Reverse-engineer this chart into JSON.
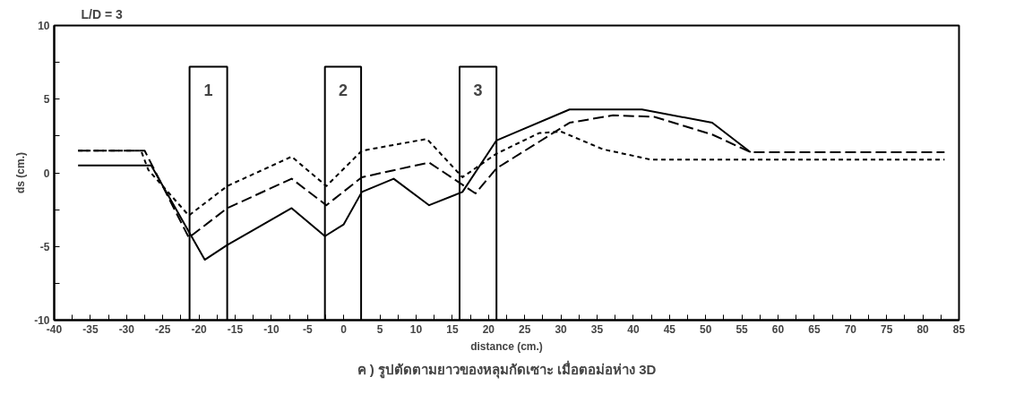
{
  "chart_data": {
    "type": "line",
    "title": "L/D = 3",
    "xlabel": "distance (cm.)",
    "ylabel": "ds (cm.)",
    "annotations": [
      "ค ) รูปตัดตามยาวของหลุมกัดเซาะ เมื่อตอม่อห่าง 3D"
    ],
    "xlim": [
      -40,
      85
    ],
    "ylim": [
      -10,
      10
    ],
    "xticks": [
      -40,
      {
        "value": -37.5,
        "label": null
      },
      -35,
      {
        "value": -32.5,
        "label": null
      },
      -30,
      {
        "value": -27.5,
        "label": null
      },
      -25,
      {
        "value": -22.5,
        "label": null
      },
      -20,
      {
        "value": -17.5,
        "label": null
      },
      -15,
      {
        "value": -12.5,
        "label": null
      },
      -10,
      {
        "value": -7.5,
        "label": null
      },
      -5,
      {
        "value": -2.5,
        "label": null
      },
      0,
      {
        "value": 2.5,
        "label": null
      },
      5,
      {
        "value": 7.5,
        "label": null
      },
      10,
      {
        "value": 12.5,
        "label": null
      },
      15,
      {
        "value": 17.5,
        "label": null
      },
      20,
      {
        "value": 22.5,
        "label": null
      },
      25,
      {
        "value": 27.5,
        "label": null
      },
      30,
      {
        "value": 32.5,
        "label": null
      },
      35,
      {
        "value": 37.5,
        "label": null
      },
      40,
      {
        "value": 42.5,
        "label": null
      },
      45,
      {
        "value": 47.5,
        "label": null
      },
      50,
      {
        "value": 52.5,
        "label": null
      },
      55,
      {
        "value": 57.5,
        "label": null
      },
      60,
      {
        "value": 62.5,
        "label": null
      },
      65,
      {
        "value": 67.5,
        "label": null
      },
      70,
      {
        "value": 72.5,
        "label": null
      },
      75,
      {
        "value": 77.5,
        "label": null
      },
      80,
      {
        "value": 82.5,
        "label": null
      },
      85
    ],
    "yticks": [
      -10,
      {
        "value": -7.5,
        "label": null
      },
      -5,
      {
        "value": -2.5,
        "label": null
      },
      0,
      {
        "value": 2.5,
        "label": null
      },
      5,
      {
        "value": 7.5,
        "label": null
      },
      10
    ],
    "grid": false,
    "marker": "none",
    "bands": [
      {
        "axis": "x",
        "from": -21.3,
        "to": -16.1,
        "label": "1",
        "color": "#ffffff"
      },
      {
        "axis": "x",
        "from": -2.6,
        "to": 2.4,
        "label": "2",
        "color": "#ffffff"
      },
      {
        "axis": "x",
        "from": 16.0,
        "to": 21.1,
        "label": "3",
        "color": "#ffffff"
      }
    ],
    "series": [
      {
        "color": "#000000",
        "line_style": "solid",
        "x": [
          -36.7,
          -26.6,
          -19.2,
          -16.1,
          -7.2,
          -2.6,
          0.0,
          2.5,
          6.9,
          11.8,
          16.4,
          21.1,
          23.5,
          31.2,
          41.2,
          50.9,
          56.2
        ],
        "values": [
          0.5,
          0.5,
          -5.9,
          -4.9,
          -2.4,
          -4.3,
          -3.5,
          -1.3,
          -0.4,
          -2.2,
          -1.3,
          2.2,
          2.7,
          4.3,
          4.3,
          3.4,
          1.4
        ]
      },
      {
        "color": "#000000",
        "line_style": "dashed",
        "x": [
          -36.7,
          -27.5,
          -21.4,
          -16.1,
          -7.2,
          -2.4,
          2.5,
          11.8,
          18.2,
          21.1,
          31.2,
          37.2,
          42.9,
          50.9,
          56.2,
          83.0
        ],
        "values": [
          1.5,
          1.5,
          -4.4,
          -2.4,
          -0.4,
          -2.2,
          -0.3,
          0.7,
          -1.4,
          0.3,
          3.4,
          3.9,
          3.8,
          2.6,
          1.4,
          1.4
        ]
      },
      {
        "color": "#000000",
        "line_style": "dotted",
        "x": [
          -36.7,
          -28.0,
          -27.0,
          -21.4,
          -16.1,
          -7.2,
          -2.4,
          2.5,
          11.5,
          16.4,
          21.1,
          27.0,
          30.0,
          35.8,
          42.4,
          83.0
        ],
        "values": [
          1.5,
          1.5,
          0.2,
          -2.9,
          -0.9,
          1.1,
          -0.9,
          1.5,
          2.3,
          -0.3,
          1.3,
          2.7,
          2.8,
          1.6,
          0.9,
          0.9
        ]
      }
    ]
  }
}
